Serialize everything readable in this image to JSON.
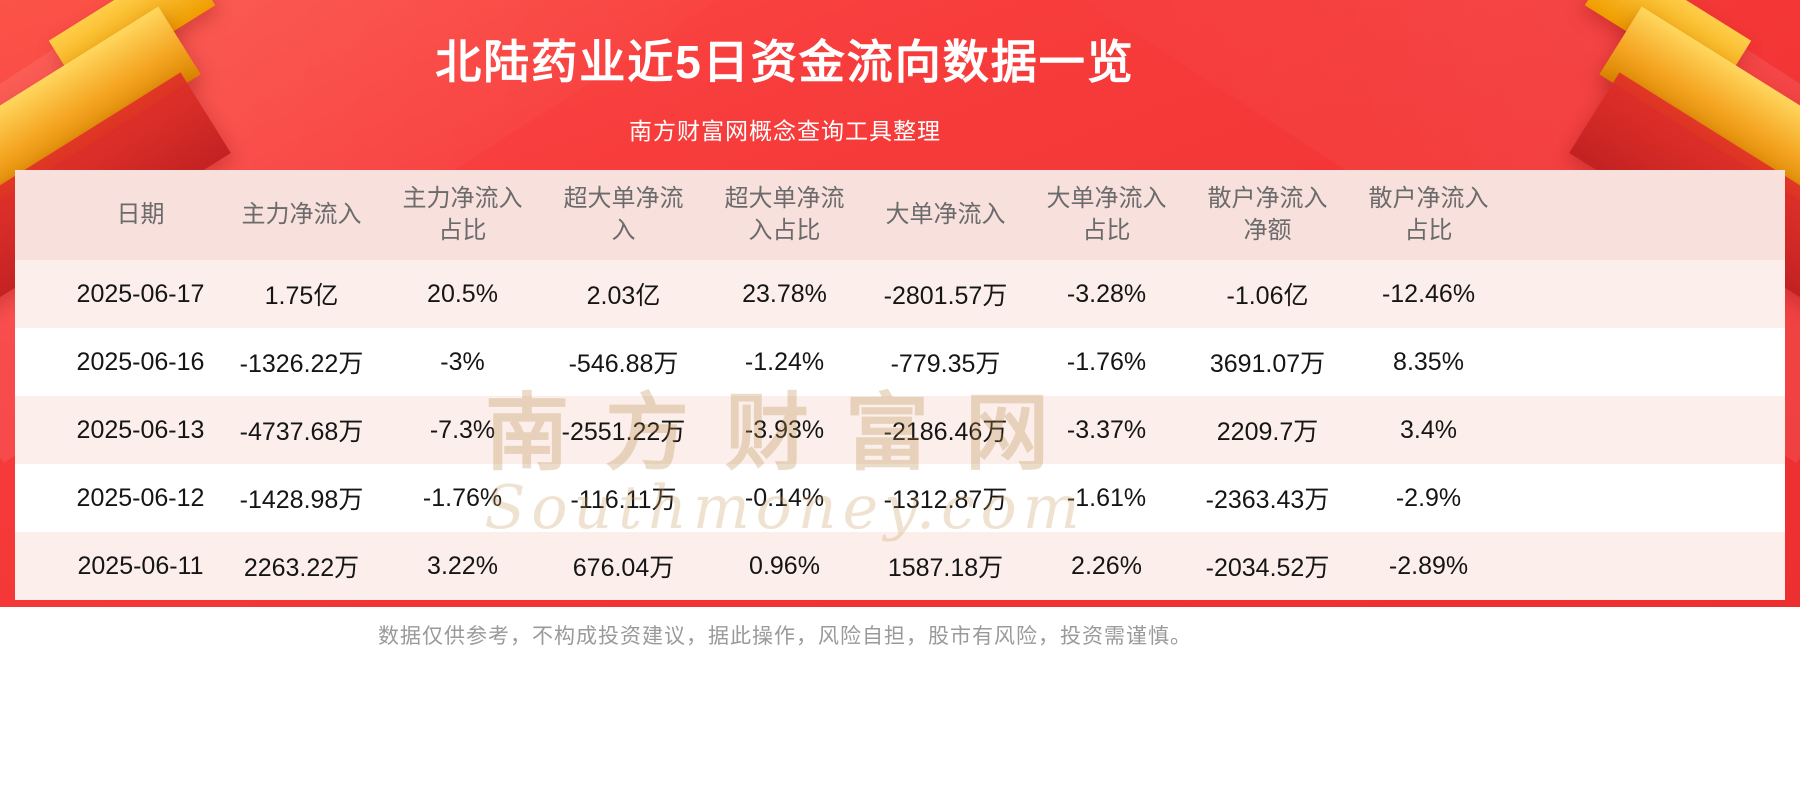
{
  "page": {
    "title": "北陆药业近5日资金流向数据一览",
    "subtitle": "南方财富网概念查询工具整理",
    "disclaimer": "数据仅供参考，不构成投资建议，据此操作，风险自担，股市有风险，投资需谨慎。"
  },
  "watermark": {
    "line1": "南方财富网",
    "line2": "Southmoney.com"
  },
  "chart_data": {
    "type": "table",
    "title": "北陆药业近5日资金流向数据一览",
    "columns": [
      "日期",
      "主力净流入",
      "主力净流入占比",
      "超大单净流入",
      "超大单净流入占比",
      "大单净流入",
      "大单净流入占比",
      "散户净流入净额",
      "散户净流入占比"
    ],
    "rows": [
      [
        "2025-06-17",
        "1.75亿",
        "20.5%",
        "2.03亿",
        "23.78%",
        "-2801.57万",
        "-3.28%",
        "-1.06亿",
        "-12.46%"
      ],
      [
        "2025-06-16",
        "-1326.22万",
        "-3%",
        "-546.88万",
        "-1.24%",
        "-779.35万",
        "-1.76%",
        "3691.07万",
        "8.35%"
      ],
      [
        "2025-06-13",
        "-4737.68万",
        "-7.3%",
        "-2551.22万",
        "-3.93%",
        "-2186.46万",
        "-3.37%",
        "2209.7万",
        "3.4%"
      ],
      [
        "2025-06-12",
        "-1428.98万",
        "-1.76%",
        "-116.11万",
        "-0.14%",
        "-1312.87万",
        "-1.61%",
        "-2363.43万",
        "-2.9%"
      ],
      [
        "2025-06-11",
        "2263.22万",
        "3.22%",
        "676.04万",
        "0.96%",
        "1587.18万",
        "2.26%",
        "-2034.52万",
        "-2.89%"
      ]
    ]
  },
  "colors": {
    "banner_red": "#f83d3d",
    "ribbon_gold": "#f5a623",
    "header_row_bg": "#f8e0dc",
    "row_pink_bg": "#fcefeb",
    "row_white_bg": "#ffffff",
    "header_text": "#6b6b6b",
    "cell_text": "#151515",
    "footer_text": "#9a9a9a",
    "watermark_gold": "#ba8a4a"
  }
}
